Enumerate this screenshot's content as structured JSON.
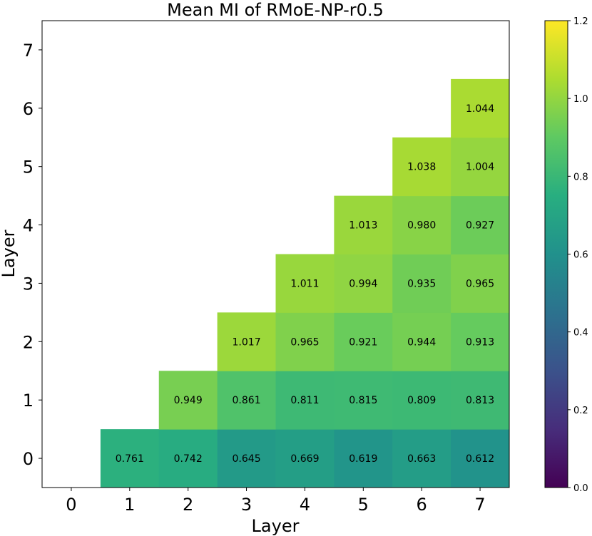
{
  "chart_data": {
    "type": "heatmap",
    "title": "Mean MI of RMoE-NP-r0.5",
    "xlabel": "Layer",
    "ylabel": "Layer",
    "x_ticks": [
      "0",
      "1",
      "2",
      "3",
      "4",
      "5",
      "6",
      "7"
    ],
    "y_ticks": [
      "0",
      "1",
      "2",
      "3",
      "4",
      "5",
      "6",
      "7"
    ],
    "colormap": "viridis",
    "vmin": 0.0,
    "vmax": 1.2,
    "colorbar_ticks": [
      "0.0",
      "0.2",
      "0.4",
      "0.6",
      "0.8",
      "1.0",
      "1.2"
    ],
    "cells": [
      {
        "x": 1,
        "y": 0,
        "value": 0.761,
        "label": "0.761"
      },
      {
        "x": 2,
        "y": 0,
        "value": 0.742,
        "label": "0.742"
      },
      {
        "x": 3,
        "y": 0,
        "value": 0.645,
        "label": "0.645"
      },
      {
        "x": 4,
        "y": 0,
        "value": 0.669,
        "label": "0.669"
      },
      {
        "x": 5,
        "y": 0,
        "value": 0.619,
        "label": "0.619"
      },
      {
        "x": 6,
        "y": 0,
        "value": 0.663,
        "label": "0.663"
      },
      {
        "x": 7,
        "y": 0,
        "value": 0.612,
        "label": "0.612"
      },
      {
        "x": 2,
        "y": 1,
        "value": 0.949,
        "label": "0.949"
      },
      {
        "x": 3,
        "y": 1,
        "value": 0.861,
        "label": "0.861"
      },
      {
        "x": 4,
        "y": 1,
        "value": 0.811,
        "label": "0.811"
      },
      {
        "x": 5,
        "y": 1,
        "value": 0.815,
        "label": "0.815"
      },
      {
        "x": 6,
        "y": 1,
        "value": 0.809,
        "label": "0.809"
      },
      {
        "x": 7,
        "y": 1,
        "value": 0.813,
        "label": "0.813"
      },
      {
        "x": 3,
        "y": 2,
        "value": 1.017,
        "label": "1.017"
      },
      {
        "x": 4,
        "y": 2,
        "value": 0.965,
        "label": "0.965"
      },
      {
        "x": 5,
        "y": 2,
        "value": 0.921,
        "label": "0.921"
      },
      {
        "x": 6,
        "y": 2,
        "value": 0.944,
        "label": "0.944"
      },
      {
        "x": 7,
        "y": 2,
        "value": 0.913,
        "label": "0.913"
      },
      {
        "x": 4,
        "y": 3,
        "value": 1.011,
        "label": "1.011"
      },
      {
        "x": 5,
        "y": 3,
        "value": 0.994,
        "label": "0.994"
      },
      {
        "x": 6,
        "y": 3,
        "value": 0.935,
        "label": "0.935"
      },
      {
        "x": 7,
        "y": 3,
        "value": 0.965,
        "label": "0.965"
      },
      {
        "x": 5,
        "y": 4,
        "value": 1.013,
        "label": "1.013"
      },
      {
        "x": 6,
        "y": 4,
        "value": 0.98,
        "label": "0.980"
      },
      {
        "x": 7,
        "y": 4,
        "value": 0.927,
        "label": "0.927"
      },
      {
        "x": 6,
        "y": 5,
        "value": 1.038,
        "label": "1.038"
      },
      {
        "x": 7,
        "y": 5,
        "value": 1.004,
        "label": "1.004"
      },
      {
        "x": 7,
        "y": 6,
        "value": 1.044,
        "label": "1.044"
      }
    ]
  }
}
